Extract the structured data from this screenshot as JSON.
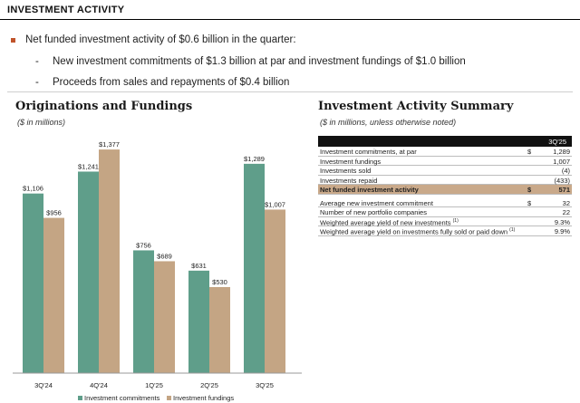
{
  "header": {
    "title": "INVESTMENT ACTIVITY"
  },
  "bullets": {
    "main": "Net funded investment activity of $0.6 billion in the quarter:",
    "sub": [
      "New investment commitments of $1.3 billion at par and investment fundings of $1.0 billion",
      "Proceeds from sales and repayments of $0.4 billion"
    ]
  },
  "chart": {
    "title": "Originations and Fundings",
    "subtitle": "($ in millions)"
  },
  "chart_data": {
    "type": "bar",
    "title": "Originations and Fundings",
    "subtitle": "($ in millions)",
    "categories": [
      "3Q'24",
      "4Q'24",
      "1Q'25",
      "2Q'25",
      "3Q'25"
    ],
    "series": [
      {
        "name": "Investment commitments",
        "color": "#5f9e8a",
        "values": [
          1106,
          1241,
          756,
          631,
          1289
        ],
        "labels": [
          "$1,106",
          "$1,241",
          "$756",
          "$631",
          "$1,289"
        ]
      },
      {
        "name": "Investment fundings",
        "color": "#c4a584",
        "values": [
          956,
          1377,
          689,
          530,
          1007
        ],
        "labels": [
          "$956",
          "$1,377",
          "$689",
          "$530",
          "$1,007"
        ]
      }
    ],
    "ylim": [
      0,
      1450
    ],
    "grid": false,
    "legend_position": "bottom"
  },
  "summary": {
    "title": "Investment Activity Summary",
    "subtitle": "($ in millions, unless otherwise noted)",
    "column_header": "3Q'25",
    "rows_top": [
      {
        "label": "Investment commitments, at par",
        "currency": "$",
        "value": "1,289"
      },
      {
        "label": "Investment fundings",
        "currency": "",
        "value": "1,007"
      },
      {
        "label": "Investments sold",
        "currency": "",
        "value": "(4)"
      },
      {
        "label": "Investments repaid",
        "currency": "",
        "value": "(433)"
      }
    ],
    "highlight_row": {
      "label": "Net funded investment activity",
      "currency": "$",
      "value": "571"
    },
    "rows_bottom": [
      {
        "label": "Average new investment commitment",
        "currency": "$",
        "value": "32"
      },
      {
        "label": "Number of new portfolio companies",
        "currency": "",
        "value": "22"
      },
      {
        "label": "Weighted average yield of new investments",
        "footnote": "(1)",
        "currency": "",
        "value": "9.3%"
      },
      {
        "label": "Weighted average yield on investments fully sold or paid down",
        "footnote": "(1)",
        "currency": "",
        "value": "9.9%"
      }
    ]
  }
}
